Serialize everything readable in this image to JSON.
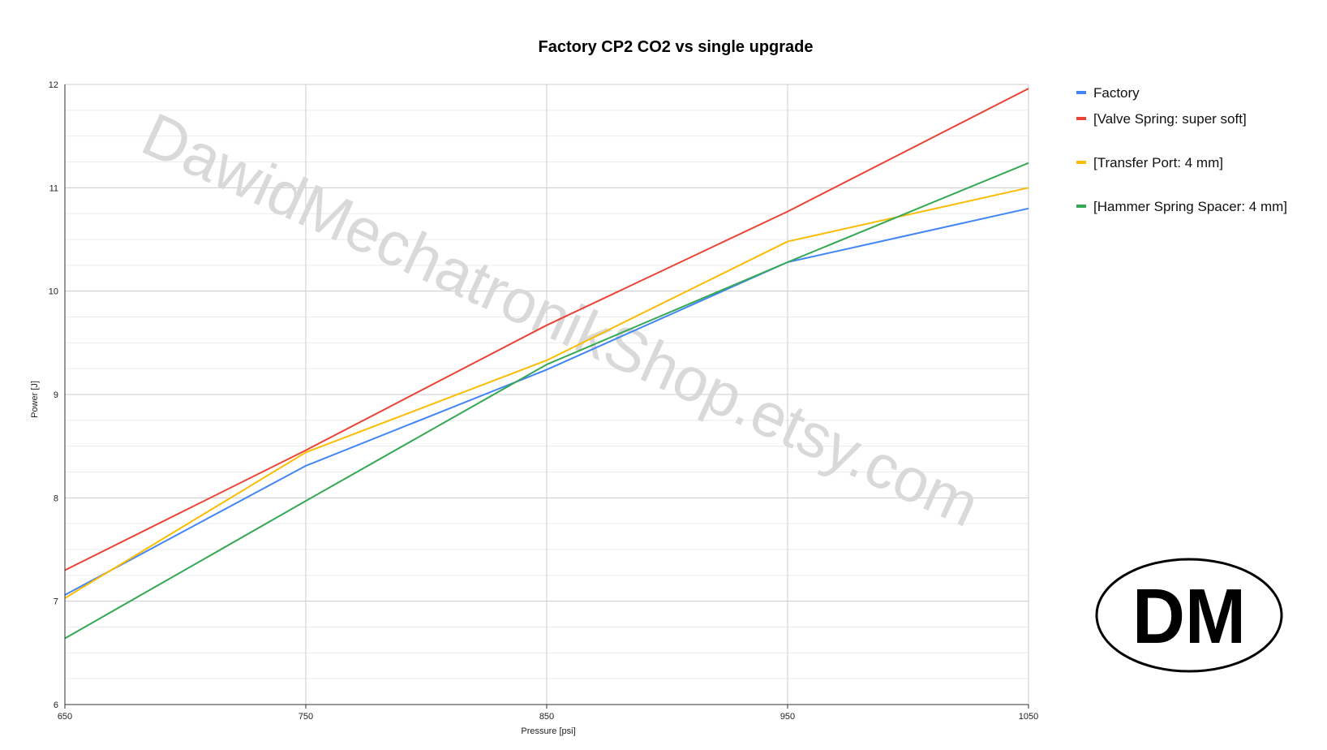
{
  "chart_data": {
    "type": "line",
    "title": "Factory CP2 CO2 vs single upgrade",
    "xlabel": "Pressure [psi]",
    "ylabel": "Power [J]",
    "x": [
      650,
      750,
      850,
      950,
      1050
    ],
    "xlim": [
      650,
      1050
    ],
    "ylim": [
      6,
      12
    ],
    "x_ticks": [
      650,
      750,
      850,
      950,
      1050
    ],
    "y_ticks": [
      6,
      7,
      8,
      9,
      10,
      11,
      12
    ],
    "grid": true,
    "legend_position": "right",
    "series": [
      {
        "name": "Factory",
        "color": "#4285f4",
        "values": [
          7.06,
          8.31,
          9.24,
          10.28,
          10.8
        ]
      },
      {
        "name": "[Valve Spring: super soft]",
        "color": "#ea4335",
        "values": [
          7.3,
          8.46,
          9.67,
          10.77,
          11.96
        ]
      },
      {
        "name": "[Transfer Port: 4 mm]",
        "color": "#fbbc04",
        "values": [
          7.03,
          8.44,
          9.33,
          10.48,
          11.0
        ]
      },
      {
        "name": "[Hammer Spring Spacer: 4 mm]",
        "color": "#34a853",
        "values": [
          6.64,
          7.97,
          9.29,
          10.28,
          11.24
        ]
      }
    ]
  },
  "watermark": {
    "text": "DawidMechatronikShop.etsy.com"
  },
  "logo": {
    "text": "DM"
  }
}
